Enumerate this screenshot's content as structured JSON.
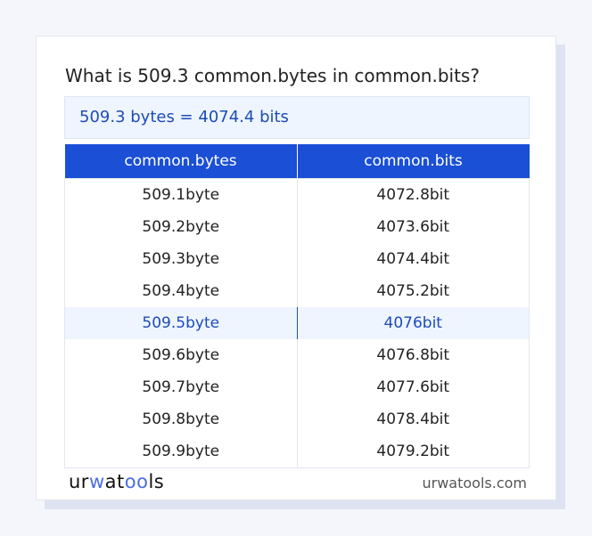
{
  "title": "What is 509.3 common.bytes in common.bits?",
  "result": "509.3 bytes = 4074.4 bits",
  "table": {
    "headers": [
      "common.bytes",
      "common.bits"
    ],
    "rows": [
      [
        "509.1byte",
        "4072.8bit"
      ],
      [
        "509.2byte",
        "4073.6bit"
      ],
      [
        "509.3byte",
        "4074.4bit"
      ],
      [
        "509.4byte",
        "4075.2bit"
      ],
      [
        "509.5byte",
        "4076bit"
      ],
      [
        "509.6byte",
        "4076.8bit"
      ],
      [
        "509.7byte",
        "4077.6bit"
      ],
      [
        "509.8byte",
        "4078.4bit"
      ],
      [
        "509.9byte",
        "4079.2bit"
      ]
    ],
    "highlighted_row": 4
  },
  "footer": {
    "logo": "urwatools",
    "domain": "urwatools.com"
  },
  "colors": {
    "accent": "#1a4fd6",
    "highlight_bg": "#eef5fe",
    "highlight_text": "#1d4bb8"
  }
}
